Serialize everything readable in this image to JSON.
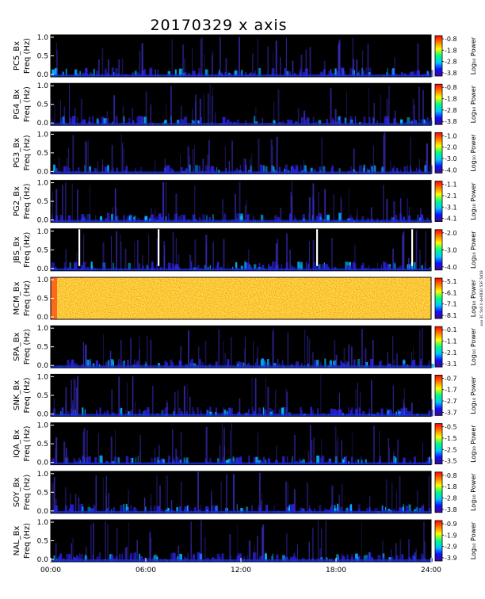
{
  "chart_data": {
    "type": "heatmap",
    "title": "20170329 x axis",
    "x_tick_labels": [
      "00:00",
      "06:00",
      "12:00",
      "18:00",
      "24:00"
    ],
    "x_range_hours": [
      0,
      24
    ],
    "y_range": [
      0,
      1
    ],
    "y_tick_labels": [
      "0.0",
      "0.5",
      "1.0"
    ],
    "colorbar_label": "Log₁₀ Power",
    "colormap": [
      "#3a0a8c",
      "#1010ff",
      "#00c8ff",
      "#00ff80",
      "#ffff00",
      "#ff8000",
      "#ff0000"
    ],
    "panels": [
      {
        "station": "PC5",
        "ylabel_1": "PC5_Bx",
        "ylabel_2": "Freq (Hz)",
        "cbar_ticks": [
          "-0.8",
          "-1.8",
          "-2.8",
          "-3.8"
        ]
      },
      {
        "station": "PG4",
        "ylabel_1": "PG4_Bx",
        "ylabel_2": "Freq (Hz)",
        "cbar_ticks": [
          "-0.8",
          "-1.8",
          "-2.8",
          "-3.8"
        ]
      },
      {
        "station": "PG3",
        "ylabel_1": "PG3_Bx",
        "ylabel_2": "Freq (Hz)",
        "cbar_ticks": [
          "-1.0",
          "-2.0",
          "-3.0",
          "-4.0"
        ]
      },
      {
        "station": "PG2",
        "ylabel_1": "PG2_Bx",
        "ylabel_2": "Freq (Hz)",
        "cbar_ticks": [
          "-1.1",
          "-2.1",
          "-3.1",
          "-4.1"
        ]
      },
      {
        "station": "JBS",
        "ylabel_1": "JBS_Bx",
        "ylabel_2": "Freq (Hz)",
        "cbar_ticks": [
          "-2.0",
          "-3.0",
          "-4.0"
        ],
        "data_gaps_hours": [
          1.8,
          6.8,
          16.8,
          22.8
        ]
      },
      {
        "station": "MCM",
        "ylabel_1": "MCM_Bx",
        "ylabel_2": "Freq (Hz)",
        "cbar_ticks": [
          "-5.1",
          "-6.1",
          "-7.1",
          "-8.1"
        ],
        "note": "xxx 3C 5e5 Il 4e0830 53F 5d18"
      },
      {
        "station": "SPA",
        "ylabel_1": "SPA_Bx",
        "ylabel_2": "Freq (Hz)",
        "cbar_ticks": [
          "-0.1",
          "-1.1",
          "-2.1",
          "-3.1"
        ]
      },
      {
        "station": "SNK",
        "ylabel_1": "SNK_Bx",
        "ylabel_2": "Freq (Hz)",
        "cbar_ticks": [
          "-0.7",
          "-1.7",
          "-2.7",
          "-3.7"
        ]
      },
      {
        "station": "IQA",
        "ylabel_1": "IQA_Bx",
        "ylabel_2": "Freq (Hz)",
        "cbar_ticks": [
          "-0.5",
          "-1.5",
          "-2.5",
          "-3.5"
        ]
      },
      {
        "station": "SOY",
        "ylabel_1": "SOY_Bx",
        "ylabel_2": "Freq (Hz)",
        "cbar_ticks": [
          "-0.8",
          "-1.8",
          "-2.8",
          "-3.8"
        ]
      },
      {
        "station": "NAL",
        "ylabel_1": "NAL_Bx",
        "ylabel_2": "Freq (Hz)",
        "cbar_ticks": [
          "-0.9",
          "-1.9",
          "-2.9",
          "-3.9"
        ]
      }
    ]
  }
}
